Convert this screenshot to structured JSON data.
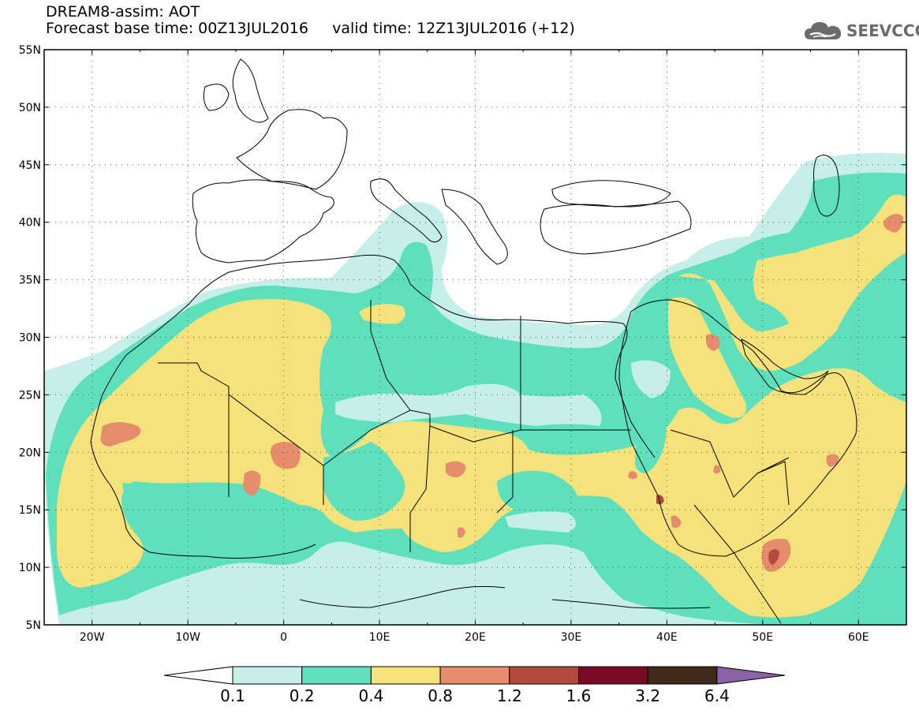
{
  "header": {
    "line1": "DREAM8-assim: AOT",
    "line2": "Forecast base time: 00Z13JUL2016     valid time: 12Z13JUL2016 (+12)"
  },
  "brand": {
    "name": "SEEVCCC",
    "icon": "cloud-logo-icon"
  },
  "map": {
    "lat_labels": [
      "55N",
      "50N",
      "45N",
      "40N",
      "35N",
      "30N",
      "25N",
      "20N",
      "15N",
      "10N",
      "5N"
    ],
    "lon_labels": [
      "20W",
      "10W",
      "0",
      "10E",
      "20E",
      "30E",
      "40E",
      "50E",
      "60E"
    ]
  },
  "legend": {
    "labels": [
      "0.1",
      "0.2",
      "0.4",
      "0.8",
      "1.2",
      "1.6",
      "3.2",
      "6.4"
    ],
    "colors": [
      "#ffffff",
      "#c6efe9",
      "#5ee0bd",
      "#f5e27a",
      "#e58c6c",
      "#b04a3e",
      "#7a0b25",
      "#3f2a1a",
      "#8a63a8"
    ]
  },
  "colors": {
    "aot_0_1_0_2": "#c6efe9",
    "aot_0_2_0_4": "#5ee0bd",
    "aot_0_4_0_8": "#f5e27a",
    "aot_0_8_1_2": "#e58c6c",
    "aot_1_2_1_6": "#b04a3e"
  }
}
